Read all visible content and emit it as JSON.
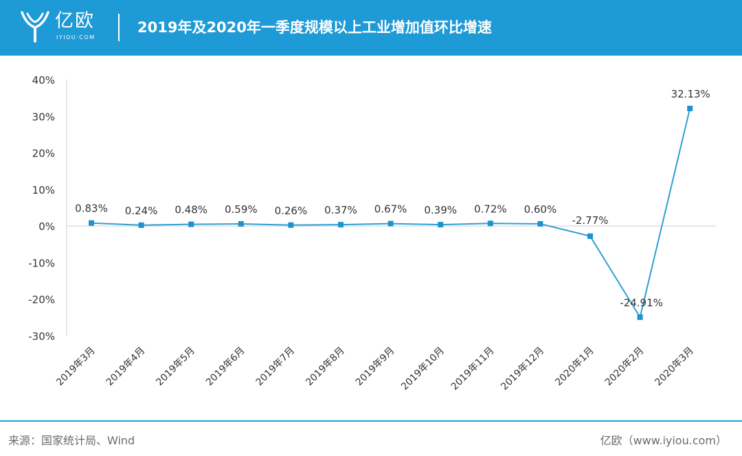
{
  "header": {
    "brand_name": "亿欧",
    "brand_domain": "IYIOU·COM",
    "title": "2019年及2020年一季度规模以上工业增加值环比增速"
  },
  "chart_data": {
    "type": "line",
    "title": "2019年及2020年一季度规模以上工业增加值环比增速",
    "xlabel": "",
    "ylabel": "",
    "categories": [
      "2019年3月",
      "2019年4月",
      "2019年5月",
      "2019年6月",
      "2019年7月",
      "2019年8月",
      "2019年9月",
      "2019年10月",
      "2019年11月",
      "2019年12月",
      "2020年1月",
      "2020年2月",
      "2020年3月"
    ],
    "series": [
      {
        "values": [
          0.83,
          0.24,
          0.48,
          0.59,
          0.26,
          0.37,
          0.67,
          0.39,
          0.72,
          0.6,
          -2.77,
          -24.91,
          32.13
        ]
      }
    ],
    "data_labels": [
      "0.83%",
      "0.24%",
      "0.48%",
      "0.59%",
      "0.26%",
      "0.37%",
      "0.67%",
      "0.39%",
      "0.72%",
      "0.60%",
      "-2.77%",
      "-24.91%",
      "32.13%"
    ],
    "ylim": [
      -30,
      40
    ],
    "yticks": [
      40,
      30,
      20,
      10,
      0,
      -10,
      -20,
      -30
    ],
    "ytick_labels": [
      "40%",
      "30%",
      "20%",
      "10%",
      "0%",
      "-10%",
      "-20%",
      "-30%"
    ],
    "grid": false,
    "legend": "none",
    "colors": {
      "line": "#2f9dd4",
      "marker": "#1e92cf",
      "axis": "#cfcfcf",
      "text": "#333333"
    }
  },
  "footer": {
    "source": "来源：国家统计局、Wind",
    "site": "亿欧（www.iyiou.com）"
  }
}
